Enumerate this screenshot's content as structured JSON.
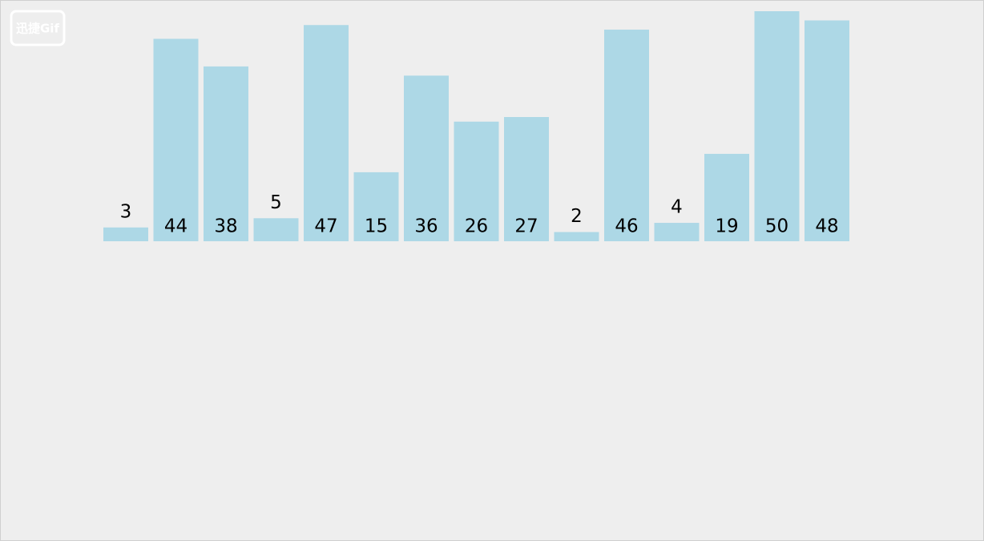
{
  "chart_data": {
    "type": "bar",
    "watermark": "迅捷Gif",
    "values": [
      3,
      44,
      38,
      5,
      47,
      15,
      36,
      26,
      27,
      2,
      46,
      4,
      19,
      50,
      48
    ],
    "color": "#add8e6",
    "ylim": [
      0,
      50
    ]
  }
}
